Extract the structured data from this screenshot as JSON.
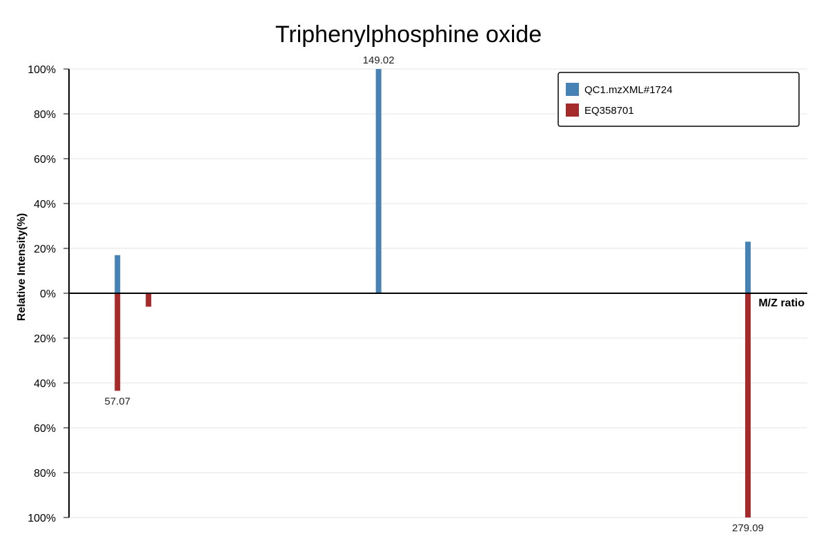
{
  "chart_data": {
    "type": "bar",
    "title": "Triphenylphosphine oxide",
    "ylabel": "Relative Intensity(%)",
    "xlabel": "M/Z ratio",
    "xlim": [
      40,
      300
    ],
    "ylim": [
      -100,
      100
    ],
    "y_ticks": [
      "100%",
      "80%",
      "60%",
      "40%",
      "20%",
      "0%",
      "20%",
      "40%",
      "60%",
      "80%",
      "100%"
    ],
    "y_tick_values": [
      100,
      80,
      60,
      40,
      20,
      0,
      -20,
      -40,
      -60,
      -80,
      -100
    ],
    "legend_position": "top-right",
    "grid": true,
    "colors": {
      "blue": "#4682b4",
      "red": "#a52a2a"
    },
    "series": [
      {
        "name": "QC1.mzXML#1724",
        "color": "#4682b4",
        "direction": "up",
        "points": [
          {
            "mz": 57.07,
            "intensity": 17,
            "label": ""
          },
          {
            "mz": 149.02,
            "intensity": 100,
            "label": "149.02"
          },
          {
            "mz": 279.09,
            "intensity": 23,
            "label": ""
          }
        ]
      },
      {
        "name": "EQ358701",
        "color": "#a52a2a",
        "direction": "down",
        "points": [
          {
            "mz": 57.07,
            "intensity": 43.5,
            "label": "57.07"
          },
          {
            "mz": 68.0,
            "intensity": 6,
            "label": ""
          },
          {
            "mz": 279.09,
            "intensity": 100,
            "label": "279.09"
          }
        ]
      }
    ]
  }
}
